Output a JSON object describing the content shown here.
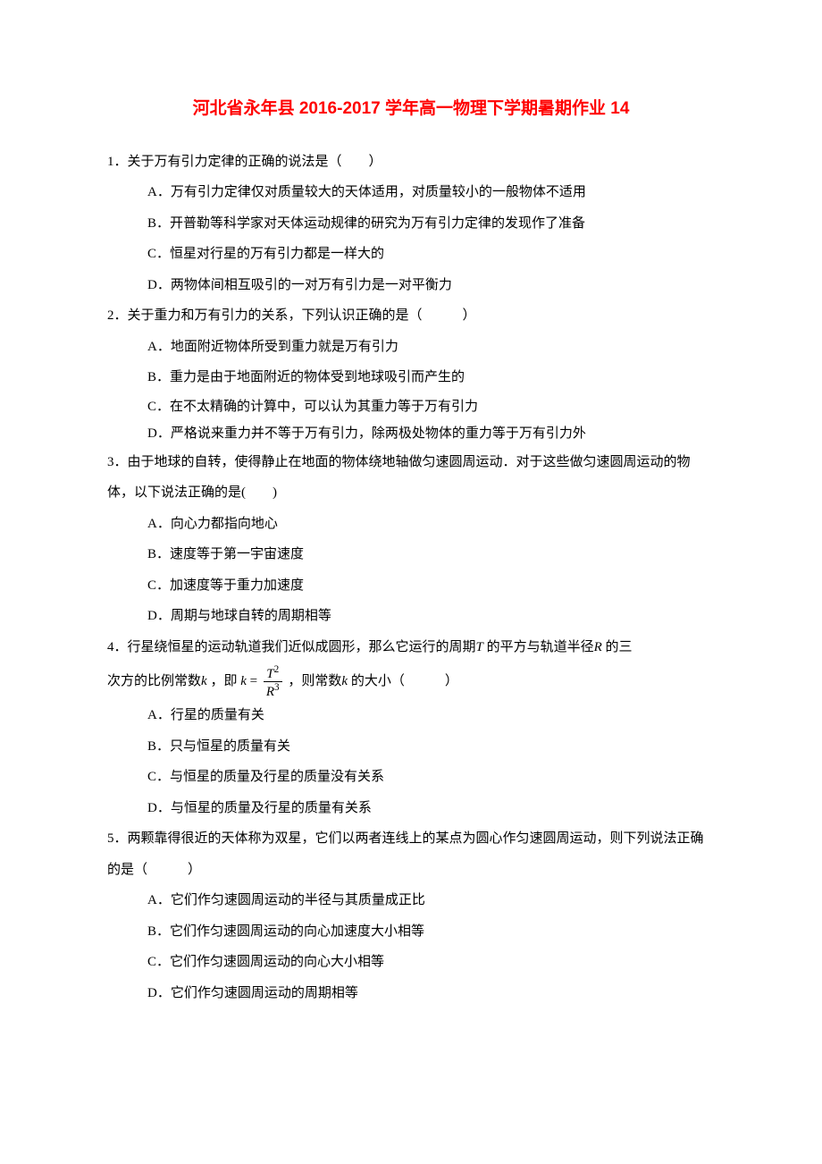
{
  "title": "河北省永年县 2016-2017 学年高一物理下学期暑期作业 14",
  "q1": {
    "stem": "1．关于万有引力定律的正确的说法是（　　）",
    "a": "A．万有引力定律仅对质量较大的天体适用，对质量较小的一般物体不适用",
    "b": "B．开普勒等科学家对天体运动规律的研究为万有引力定律的发现作了准备",
    "c": "C．恒星对行星的万有引力都是一样大的",
    "d": "D．两物体间相互吸引的一对万有引力是一对平衡力"
  },
  "q2": {
    "stem": "2．关于重力和万有引力的关系，下列认识正确的是（　　　）",
    "a": "A．地面附近物体所受到重力就是万有引力",
    "b": "B．重力是由于地面附近的物体受到地球吸引而产生的",
    "c": "C．在不太精确的计算中，可以认为其重力等于万有引力",
    "d": "D．严格说来重力并不等于万有引力，除两极处物体的重力等于万有引力外"
  },
  "q3": {
    "stem": "3．由于地球的自转，使得静止在地面的物体绕地轴做匀速圆周运动．对于这些做匀速圆周运动的物体，以下说法正确的是(　　)",
    "a": "A．向心力都指向地心",
    "b": "B．速度等于第一宇宙速度",
    "c": "C．加速度等于重力加速度",
    "d": "D．周期与地球自转的周期相等"
  },
  "q4": {
    "stem1": "4．行星绕恒星的运动轨道我们近似成圆形，那么它运行的周期",
    "stem1t": " 的平方与轨道半径",
    "stem1r": " 的三",
    "stem2a": "次方的比例常数",
    "stem2b": " ，即 ",
    "stem2c": " ，则常数",
    "stem2d": " 的大小（　　　）",
    "a": "A．行星的质量有关",
    "b": "B．只与恒星的质量有关",
    "c": "C．与恒星的质量及行星的质量没有关系",
    "d": "D．与恒星的质量及行星的质量有关系"
  },
  "q5": {
    "stem": "5．两颗靠得很近的天体称为双星，它们以两者连线上的某点为圆心作匀速圆周运动，则下列说法正确的是（　　　）",
    "a": "A．它们作匀速圆周运动的半径与其质量成正比",
    "b": "B．它们作匀速圆周运动的向心加速度大小相等",
    "c": "C．它们作匀速圆周运动的向心大小相等",
    "d": "D．它们作匀速圆周运动的周期相等"
  }
}
